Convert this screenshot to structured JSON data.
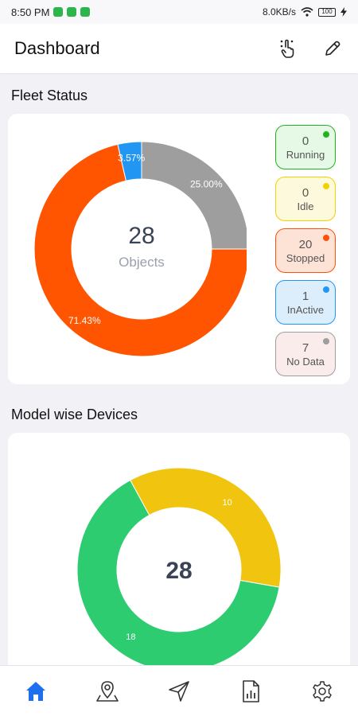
{
  "status_bar": {
    "time": "8:50 PM",
    "network_speed": "8.0KB/s",
    "battery": "100"
  },
  "header": {
    "title": "Dashboard",
    "actions": [
      "touch-icon",
      "edit-icon"
    ]
  },
  "fleet_status": {
    "title": "Fleet Status",
    "total": "28",
    "total_label": "Objects",
    "legend": [
      {
        "count": "0",
        "label": "Running",
        "color": "#1fb51f",
        "bg": "#e6f8e6"
      },
      {
        "count": "0",
        "label": "Idle",
        "color": "#f2d100",
        "bg": "#fdf9dc"
      },
      {
        "count": "20",
        "label": "Stopped",
        "color": "#ff4f0a",
        "bg": "#fde3d6"
      },
      {
        "count": "1",
        "label": "InActive",
        "color": "#2196f3",
        "bg": "#dceefc"
      },
      {
        "count": "7",
        "label": "No Data",
        "color": "#9e9e9e",
        "bg": "#f9eceb"
      }
    ]
  },
  "model_devices": {
    "title": "Model wise Devices",
    "total": "28"
  },
  "chart_data": [
    {
      "type": "pie",
      "title": "Fleet Status",
      "categories": [
        "No Data",
        "Stopped",
        "InActive"
      ],
      "values": [
        25.0,
        71.43,
        3.57
      ],
      "labels": [
        "25.00%",
        "71.43%",
        "3.57%"
      ],
      "colors": [
        "#9e9e9e",
        "#ff5500",
        "#2196f3"
      ]
    },
    {
      "type": "pie",
      "title": "Model wise Devices",
      "categories": [
        "",
        ""
      ],
      "values": [
        10,
        18
      ],
      "labels": [
        "10",
        "18"
      ],
      "colors": [
        "#f1c40f",
        "#2ecc71"
      ]
    }
  ],
  "bottom_nav": [
    "home-icon",
    "map-pin-icon",
    "navigation-icon",
    "report-icon",
    "settings-icon"
  ]
}
